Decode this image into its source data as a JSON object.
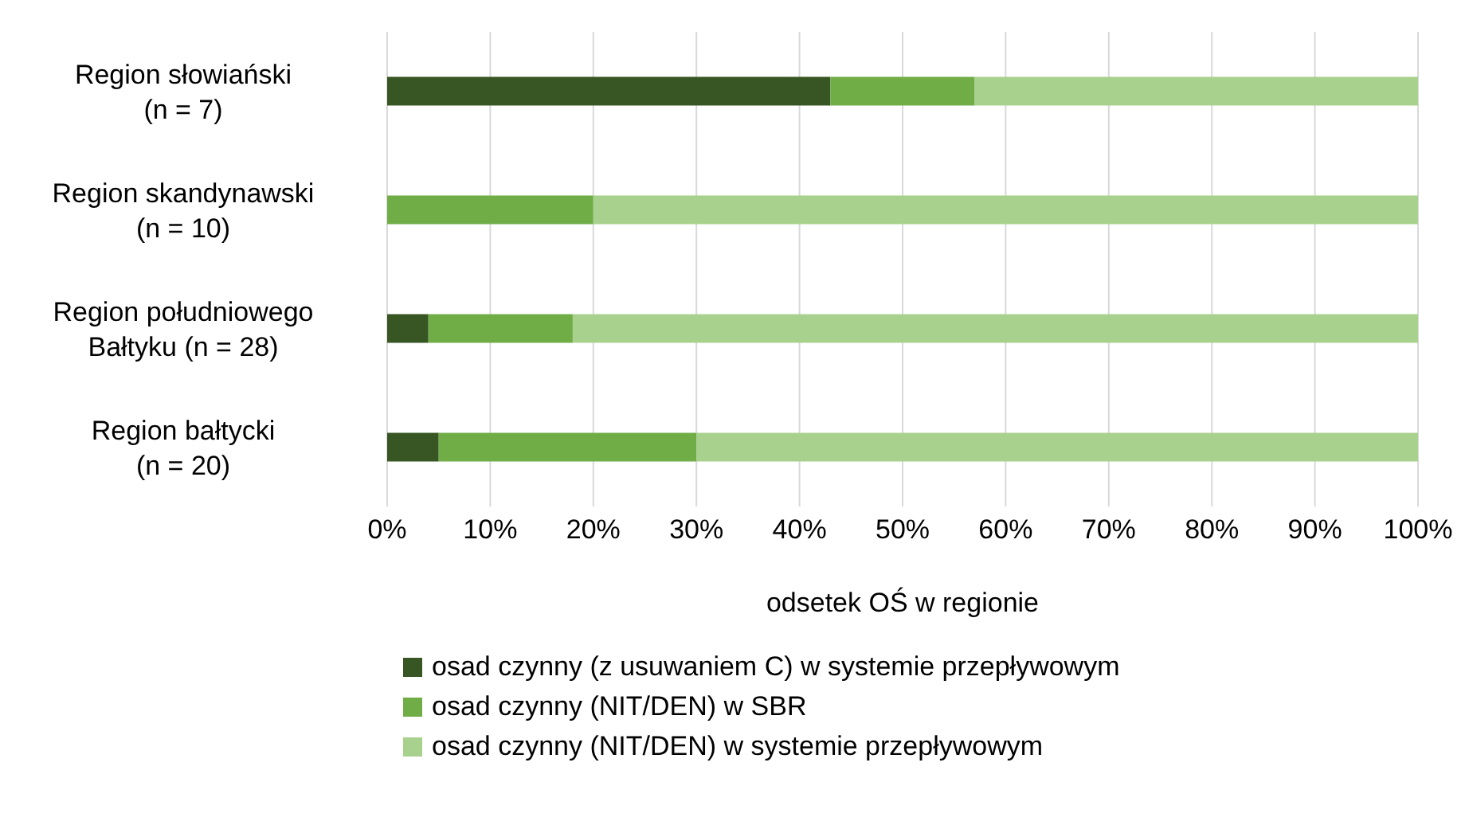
{
  "chart_data": {
    "type": "bar",
    "orientation": "horizontal",
    "stacked": true,
    "xlabel": "odsetek OŚ w regionie",
    "categories": [
      "Region słowiański\n(n = 7)",
      "Region skandynawski\n(n = 10)",
      "Region południowego\nBałtyku (n = 28)",
      "Region bałtycki\n(n = 20)"
    ],
    "series": [
      {
        "name": "osad czynny (z usuwaniem C) w systemie przepływowym",
        "color": "#375623",
        "values": [
          43,
          0,
          4,
          5
        ]
      },
      {
        "name": "osad czynny (NIT/DEN) w SBR",
        "color": "#70ad47",
        "values": [
          14,
          20,
          14,
          25
        ]
      },
      {
        "name": "osad czynny (NIT/DEN) w systemie przepływowym",
        "color": "#a9d18e",
        "values": [
          43,
          80,
          82,
          70
        ]
      }
    ],
    "xlim": [
      0,
      100
    ],
    "xticks": [
      {
        "value": 0,
        "label": "0%"
      },
      {
        "value": 10,
        "label": "10%"
      },
      {
        "value": 20,
        "label": "20%"
      },
      {
        "value": 30,
        "label": "30%"
      },
      {
        "value": 40,
        "label": "40%"
      },
      {
        "value": 50,
        "label": "50%"
      },
      {
        "value": 60,
        "label": "60%"
      },
      {
        "value": 70,
        "label": "70%"
      },
      {
        "value": 80,
        "label": "80%"
      },
      {
        "value": 90,
        "label": "90%"
      },
      {
        "value": 100,
        "label": "100%"
      }
    ],
    "grid": "x",
    "legend": "bottom"
  }
}
